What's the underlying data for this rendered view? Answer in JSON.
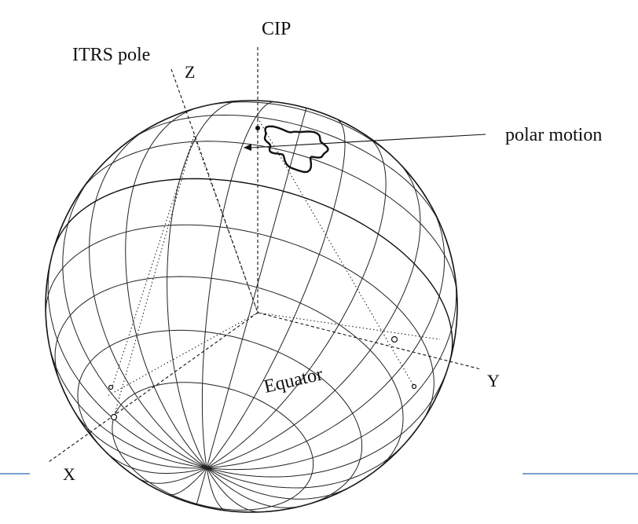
{
  "labels": {
    "cip": "CIP",
    "itrs_pole": "ITRS pole",
    "z_axis": "Z",
    "polar_motion": "polar motion",
    "equator": "Equator",
    "y_axis": "Y",
    "x_axis": "X"
  },
  "colors": {
    "ink": "#111111",
    "rule": "#4f81bd"
  }
}
